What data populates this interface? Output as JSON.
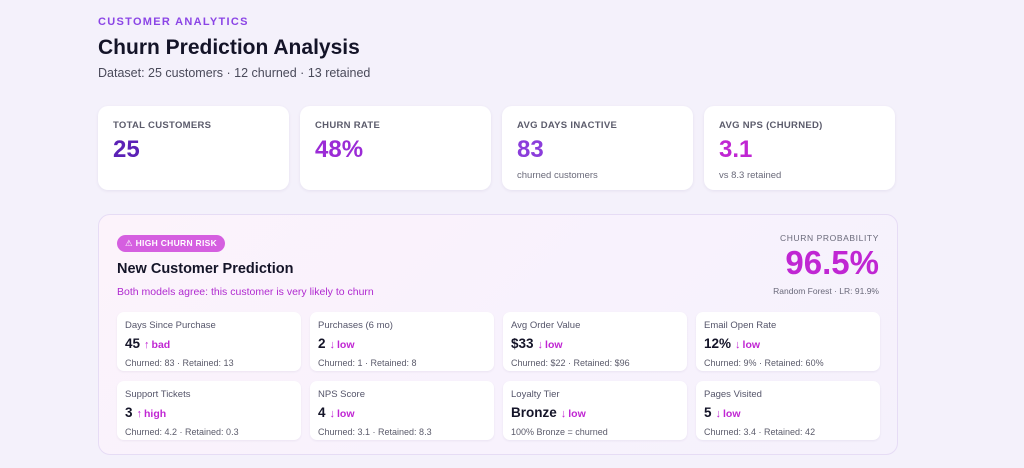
{
  "header": {
    "eyebrow": "CUSTOMER ANALYTICS",
    "title": "Churn Prediction Analysis",
    "subtitle": "Dataset: 25 customers  ·  12 churned  ·  13 retained"
  },
  "stats": [
    {
      "label": "TOTAL CUSTOMERS",
      "value": "25",
      "sub": ""
    },
    {
      "label": "CHURN RATE",
      "value": "48%",
      "sub": ""
    },
    {
      "label": "AVG DAYS INACTIVE",
      "value": "83",
      "sub": "churned customers"
    },
    {
      "label": "AVG NPS (CHURNED)",
      "value": "3.1",
      "sub": "vs 8.3 retained"
    }
  ],
  "prediction": {
    "badge_icon": "⚠",
    "badge": "HIGH CHURN RISK",
    "title": "New Customer Prediction",
    "subtitle": "Both models agree: this customer is very likely to churn",
    "probability_label": "CHURN PROBABILITY",
    "probability_value": "96.5%",
    "probability_sub": "Random Forest · LR: 91.9%",
    "accent_color": "#c026d3"
  },
  "features": [
    {
      "label": "Days Since Purchase",
      "value": "45",
      "arrow": "↑",
      "direction": "bad",
      "sub": "Churned: 83 · Retained: 13"
    },
    {
      "label": "Purchases (6 mo)",
      "value": "2",
      "arrow": "↓",
      "direction": "low",
      "sub": "Churned: 1 · Retained: 8"
    },
    {
      "label": "Avg Order Value",
      "value": "$33",
      "arrow": "↓",
      "direction": "low",
      "sub": "Churned: $22 · Retained: $96"
    },
    {
      "label": "Email Open Rate",
      "value": "12%",
      "arrow": "↓",
      "direction": "low",
      "sub": "Churned: 9% · Retained: 60%"
    },
    {
      "label": "Support Tickets",
      "value": "3",
      "arrow": "↑",
      "direction": "high",
      "sub": "Churned: 4.2 · Retained: 0.3"
    },
    {
      "label": "NPS Score",
      "value": "4",
      "arrow": "↓",
      "direction": "low",
      "sub": "Churned: 3.1 · Retained: 8.3"
    },
    {
      "label": "Loyalty Tier",
      "value": "Bronze",
      "arrow": "↓",
      "direction": "low",
      "sub": "100% Bronze = churned"
    },
    {
      "label": "Pages Visited",
      "value": "5",
      "arrow": "↓",
      "direction": "low",
      "sub": "Churned: 3.4 · Retained: 42"
    }
  ]
}
